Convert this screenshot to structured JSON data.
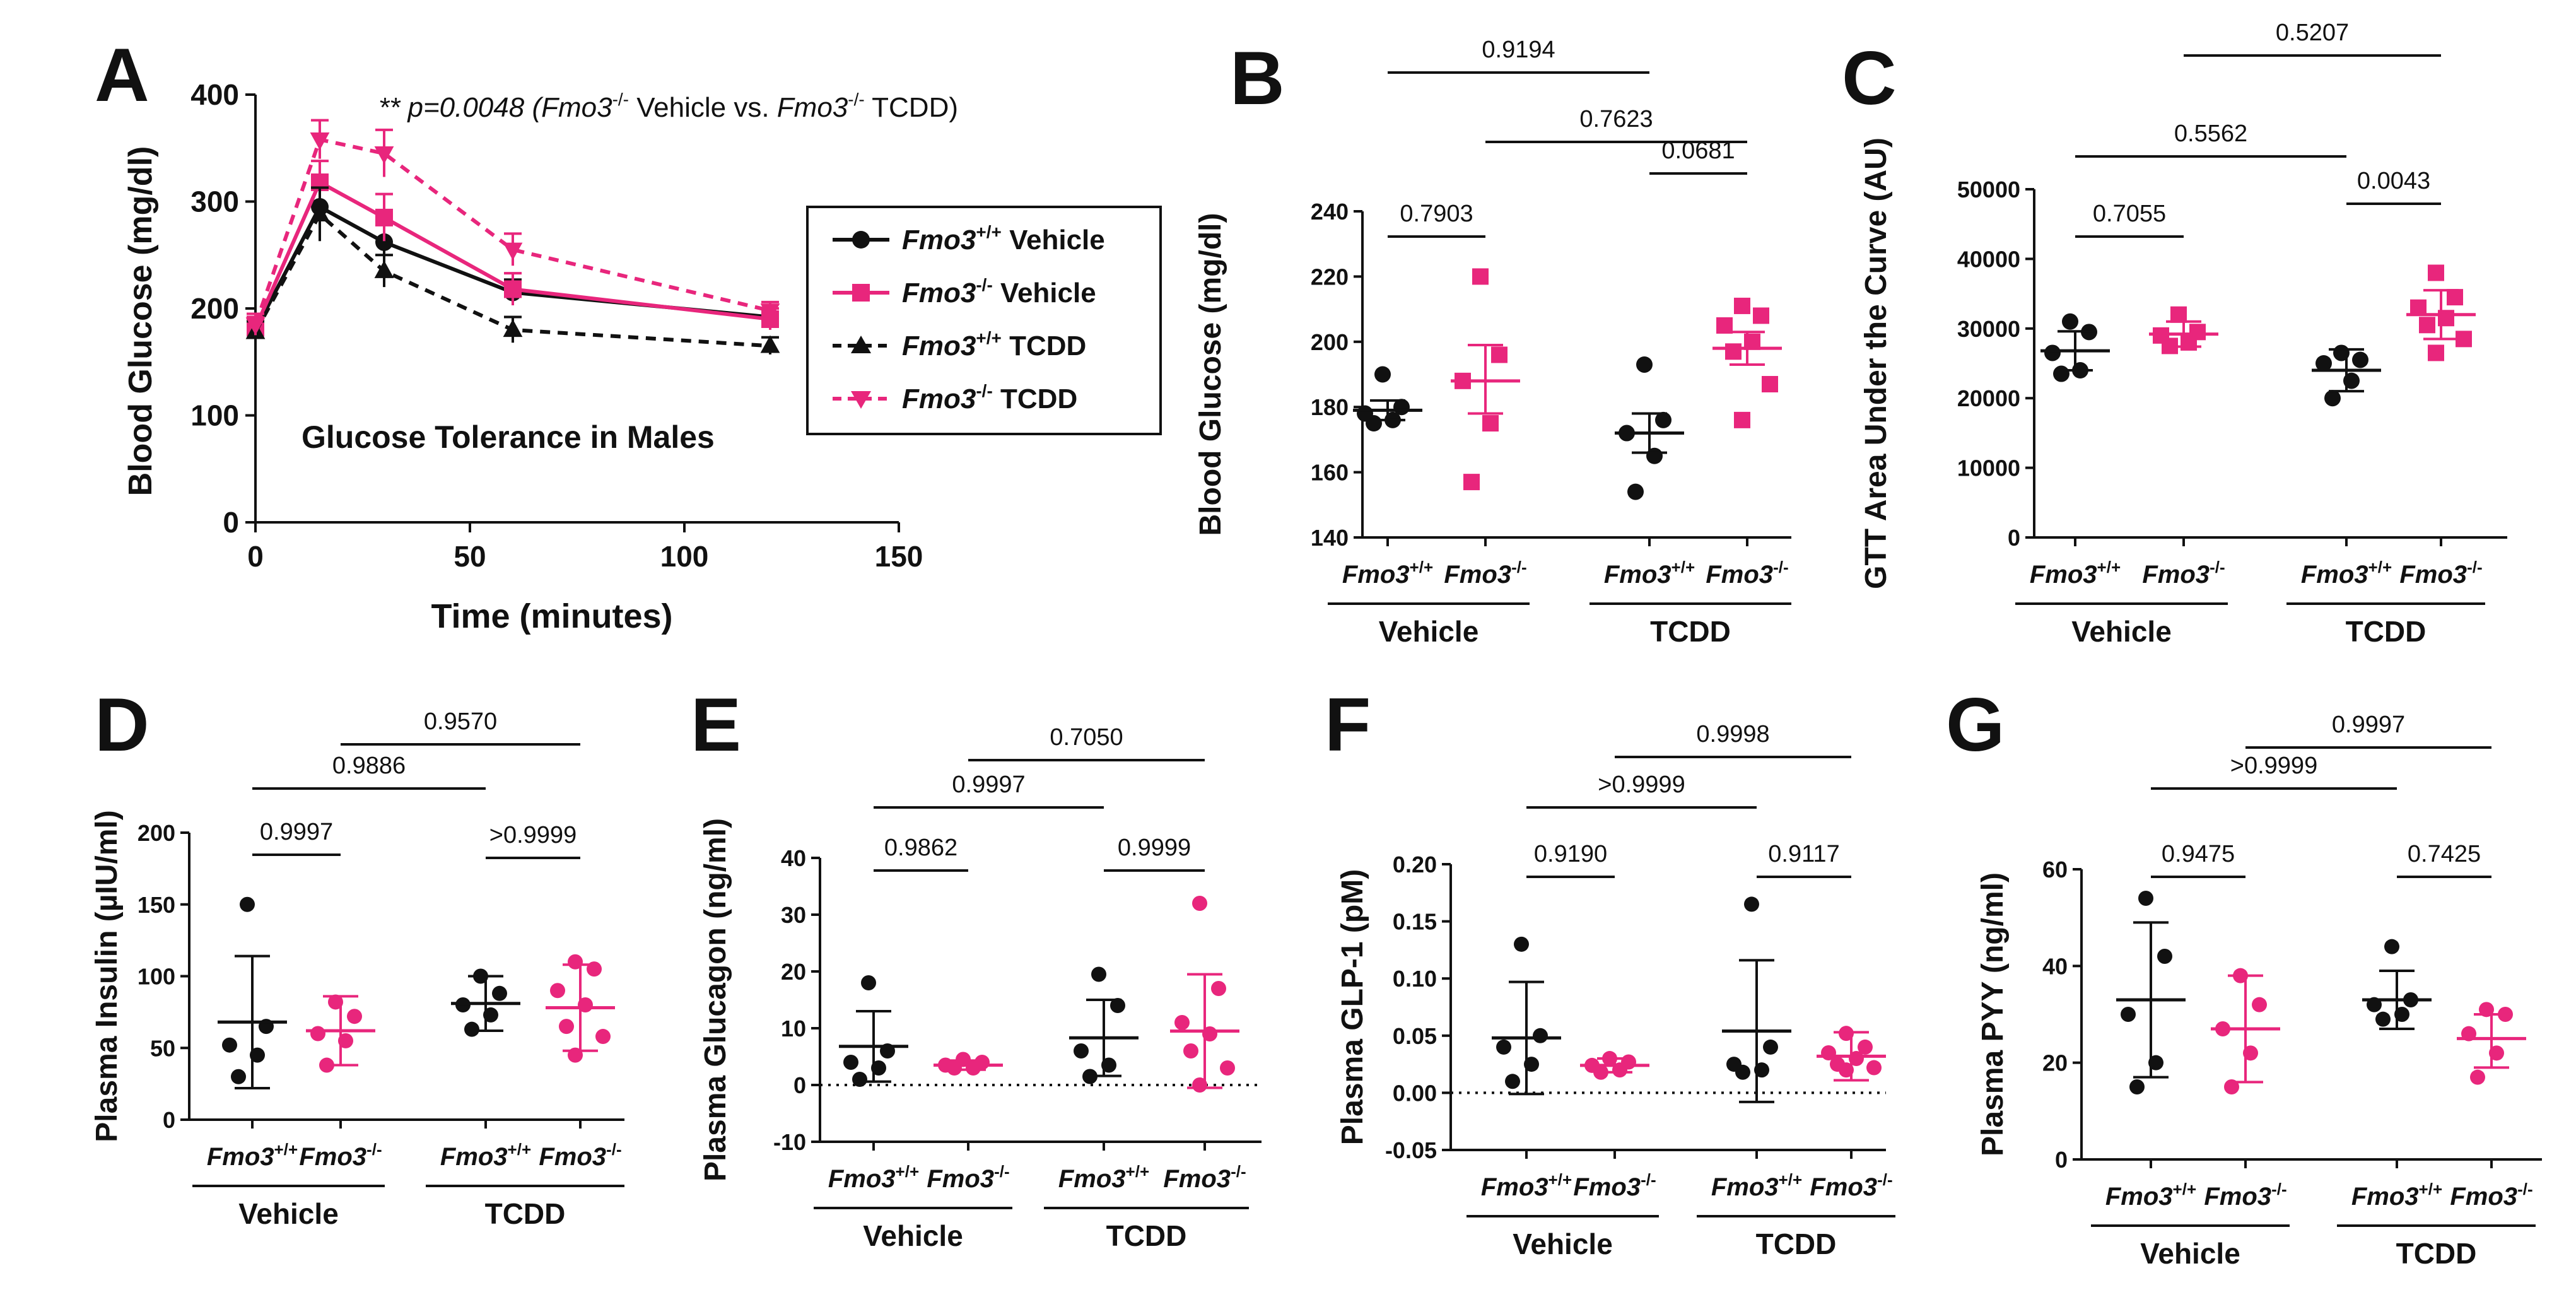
{
  "colors": {
    "wt": "#111111",
    "ko": "#E8267C"
  },
  "panelA": {
    "letter": "A",
    "annotation_prefix": "** p=0.0048 (",
    "annotation_g1": "Fmo3",
    "annotation_s1": "-/-",
    "annotation_mid": " Vehicle vs. ",
    "annotation_g2": "Fmo3",
    "annotation_s2": "-/-",
    "annotation_end": " TCDD)",
    "inner_title": "Glucose Tolerance in Males",
    "legend": [
      {
        "gene": "Fmo3",
        "sup": "+/+",
        "label": "Vehicle"
      },
      {
        "gene": "Fmo3",
        "sup": "-/-",
        "label": "Vehicle"
      },
      {
        "gene": "Fmo3",
        "sup": "+/+",
        "label": "TCDD"
      },
      {
        "gene": "Fmo3",
        "sup": "-/-",
        "label": "TCDD"
      }
    ]
  },
  "group_labels": {
    "wt_gene": "Fmo3",
    "wt_sup": "+/+",
    "ko_gene": "Fmo3",
    "ko_sup": "-/-",
    "vehicle": "Vehicle",
    "tcdd": "TCDD"
  },
  "chart_data": [
    {
      "id": "A",
      "type": "line",
      "xlabel": "Time (minutes)",
      "ylabel": "Blood Glucose (mg/dl)",
      "xlim": [
        0,
        150
      ],
      "ylim": [
        0,
        400
      ],
      "xticks": [
        0,
        50,
        100,
        150
      ],
      "yticks": [
        0,
        100,
        200,
        300,
        400
      ],
      "x": [
        0,
        15,
        30,
        60,
        120
      ],
      "series": [
        {
          "name": "Fmo3+/+ Vehicle",
          "color": "wt",
          "dash": false,
          "marker": "circle",
          "values": [
            180,
            295,
            262,
            215,
            192
          ],
          "err": [
            8,
            25,
            20,
            12,
            8
          ]
        },
        {
          "name": "Fmo3-/- Vehicle",
          "color": "ko",
          "dash": false,
          "marker": "square",
          "values": [
            182,
            318,
            285,
            218,
            190
          ],
          "err": [
            10,
            20,
            22,
            15,
            10
          ]
        },
        {
          "name": "Fmo3+/+ TCDD",
          "color": "wt",
          "dash": true,
          "marker": "triangle-up",
          "values": [
            178,
            288,
            235,
            180,
            165
          ],
          "err": [
            10,
            25,
            15,
            12,
            8
          ]
        },
        {
          "name": "Fmo3-/- TCDD",
          "color": "ko",
          "dash": true,
          "marker": "triangle-down",
          "values": [
            185,
            358,
            345,
            255,
            198
          ],
          "err": [
            10,
            18,
            22,
            15,
            8
          ]
        }
      ]
    },
    {
      "id": "B",
      "type": "scatter",
      "ylabel": "Blood Glucose (mg/dl)",
      "ylim": [
        140,
        240
      ],
      "yticks": [
        140,
        160,
        180,
        200,
        220,
        240
      ],
      "groups": [
        {
          "mean": 179,
          "upper": 182,
          "lower": 176,
          "points": [
            190,
            180,
            178,
            176,
            175
          ]
        },
        {
          "mean": 188,
          "upper": 199,
          "lower": 178,
          "points": [
            220,
            196,
            188,
            175,
            157
          ]
        },
        {
          "mean": 172,
          "upper": 178,
          "lower": 166,
          "points": [
            193,
            176,
            172,
            165,
            154
          ]
        },
        {
          "mean": 198,
          "upper": 203,
          "lower": 193,
          "points": [
            211,
            208,
            205,
            200,
            197,
            187,
            176
          ]
        }
      ],
      "comparisons": [
        {
          "label": "0.7903",
          "from": 0,
          "to": 1
        },
        {
          "label": "0.0681",
          "from": 2,
          "to": 3
        },
        {
          "label": "0.7623",
          "from": 1,
          "to": 3
        },
        {
          "label": "0.9194",
          "from": 0,
          "to": 2
        }
      ]
    },
    {
      "id": "C",
      "type": "scatter",
      "ylabel": "GTT Area Under the Curve (AU)",
      "ylim": [
        0,
        50000
      ],
      "yticks": [
        0,
        10000,
        20000,
        30000,
        40000,
        50000
      ],
      "groups": [
        {
          "mean": 26800,
          "upper": 29600,
          "lower": 24000,
          "points": [
            31000,
            29500,
            26500,
            24000,
            23500
          ]
        },
        {
          "mean": 29200,
          "upper": 31000,
          "lower": 27400,
          "points": [
            32000,
            29500,
            29000,
            28000,
            27500
          ]
        },
        {
          "mean": 24000,
          "upper": 27000,
          "lower": 21000,
          "points": [
            26500,
            25500,
            25000,
            22500,
            20000
          ]
        },
        {
          "mean": 32000,
          "upper": 35500,
          "lower": 28500,
          "points": [
            38000,
            34500,
            33000,
            31500,
            30500,
            28500,
            26500
          ]
        }
      ],
      "comparisons": [
        {
          "label": "0.7055",
          "from": 0,
          "to": 1
        },
        {
          "label": "0.0043",
          "from": 2,
          "to": 3
        },
        {
          "label": "0.5562",
          "from": 0,
          "to": 2
        },
        {
          "label": "0.5207",
          "from": 1,
          "to": 3
        }
      ]
    },
    {
      "id": "D",
      "type": "scatter",
      "ylabel": "Plasma Insulin (µIU/ml)",
      "ylim": [
        0,
        200
      ],
      "yticks": [
        0,
        50,
        100,
        150,
        200
      ],
      "groups": [
        {
          "mean": 68,
          "upper": 114,
          "lower": 22,
          "points": [
            150,
            65,
            52,
            45,
            30
          ]
        },
        {
          "mean": 62,
          "upper": 86,
          "lower": 38,
          "points": [
            82,
            72,
            60,
            55,
            38
          ]
        },
        {
          "mean": 81,
          "upper": 100,
          "lower": 62,
          "points": [
            100,
            88,
            80,
            73,
            63
          ]
        },
        {
          "mean": 78,
          "upper": 108,
          "lower": 48,
          "points": [
            110,
            105,
            90,
            80,
            65,
            58,
            45
          ]
        }
      ],
      "comparisons": [
        {
          "label": "0.9997",
          "from": 0,
          "to": 1
        },
        {
          "label": ">0.9999",
          "from": 2,
          "to": 3
        },
        {
          "label": "0.9886",
          "from": 0,
          "to": 2
        },
        {
          "label": "0.9570",
          "from": 1,
          "to": 3
        }
      ]
    },
    {
      "id": "E",
      "type": "scatter",
      "ylabel": "Plasma Glucagon (ng/ml)",
      "ylim": [
        -10,
        40
      ],
      "yticks": [
        -10,
        0,
        10,
        20,
        30,
        40
      ],
      "zero_line": true,
      "groups": [
        {
          "mean": 6.8,
          "upper": 13,
          "lower": 0.6,
          "points": [
            18,
            6,
            4,
            3,
            1
          ]
        },
        {
          "mean": 3.5,
          "upper": 4.3,
          "lower": 2.7,
          "points": [
            4.5,
            4,
            3.5,
            3,
            3
          ]
        },
        {
          "mean": 8.3,
          "upper": 15,
          "lower": 1.6,
          "points": [
            19.5,
            14,
            6,
            3.5,
            1.5
          ]
        },
        {
          "mean": 9.5,
          "upper": 19.5,
          "lower": -0.5,
          "points": [
            32,
            17,
            11,
            9,
            6,
            3,
            0
          ]
        }
      ],
      "comparisons": [
        {
          "label": "0.9862",
          "from": 0,
          "to": 1
        },
        {
          "label": "0.9999",
          "from": 2,
          "to": 3
        },
        {
          "label": "0.9997",
          "from": 0,
          "to": 2
        },
        {
          "label": "0.7050",
          "from": 1,
          "to": 3
        }
      ]
    },
    {
      "id": "F",
      "type": "scatter",
      "ylabel": "Plasma GLP-1 (pM)",
      "ylim": [
        -0.05,
        0.2
      ],
      "yticks": [
        -0.05,
        0.0,
        0.05,
        0.1,
        0.15,
        0.2
      ],
      "zero_line": true,
      "groups": [
        {
          "mean": 0.048,
          "upper": 0.097,
          "lower": -0.001,
          "points": [
            0.13,
            0.05,
            0.04,
            0.025,
            0.01
          ]
        },
        {
          "mean": 0.024,
          "upper": 0.03,
          "lower": 0.018,
          "points": [
            0.03,
            0.027,
            0.024,
            0.02,
            0.018
          ]
        },
        {
          "mean": 0.054,
          "upper": 0.116,
          "lower": -0.008,
          "points": [
            0.165,
            0.04,
            0.025,
            0.02,
            0.018
          ]
        },
        {
          "mean": 0.032,
          "upper": 0.053,
          "lower": 0.011,
          "points": [
            0.052,
            0.04,
            0.035,
            0.03,
            0.025,
            0.022,
            0.02
          ]
        }
      ],
      "comparisons": [
        {
          "label": "0.9190",
          "from": 0,
          "to": 1
        },
        {
          "label": "0.9117",
          "from": 2,
          "to": 3
        },
        {
          "label": ">0.9999",
          "from": 0,
          "to": 2
        },
        {
          "label": "0.9998",
          "from": 1,
          "to": 3
        }
      ]
    },
    {
      "id": "G",
      "type": "scatter",
      "ylabel": "Plasma PYY (ng/ml)",
      "ylim": [
        0,
        60
      ],
      "yticks": [
        0,
        20,
        40,
        60
      ],
      "groups": [
        {
          "mean": 33,
          "upper": 49,
          "lower": 17,
          "points": [
            54,
            42,
            30,
            20,
            15
          ]
        },
        {
          "mean": 27,
          "upper": 38,
          "lower": 16,
          "points": [
            38,
            32,
            27,
            22,
            15
          ]
        },
        {
          "mean": 33,
          "upper": 39,
          "lower": 27,
          "points": [
            44,
            33,
            32,
            30,
            29
          ]
        },
        {
          "mean": 25,
          "upper": 30,
          "lower": 19,
          "points": [
            31,
            30,
            26,
            22,
            17
          ]
        }
      ],
      "comparisons": [
        {
          "label": "0.9475",
          "from": 0,
          "to": 1
        },
        {
          "label": "0.7425",
          "from": 2,
          "to": 3
        },
        {
          "label": ">0.9999",
          "from": 0,
          "to": 2
        },
        {
          "label": "0.9997",
          "from": 1,
          "to": 3
        }
      ]
    }
  ],
  "panel_letters": {
    "B": "B",
    "C": "C",
    "D": "D",
    "E": "E",
    "F": "F",
    "G": "G"
  }
}
